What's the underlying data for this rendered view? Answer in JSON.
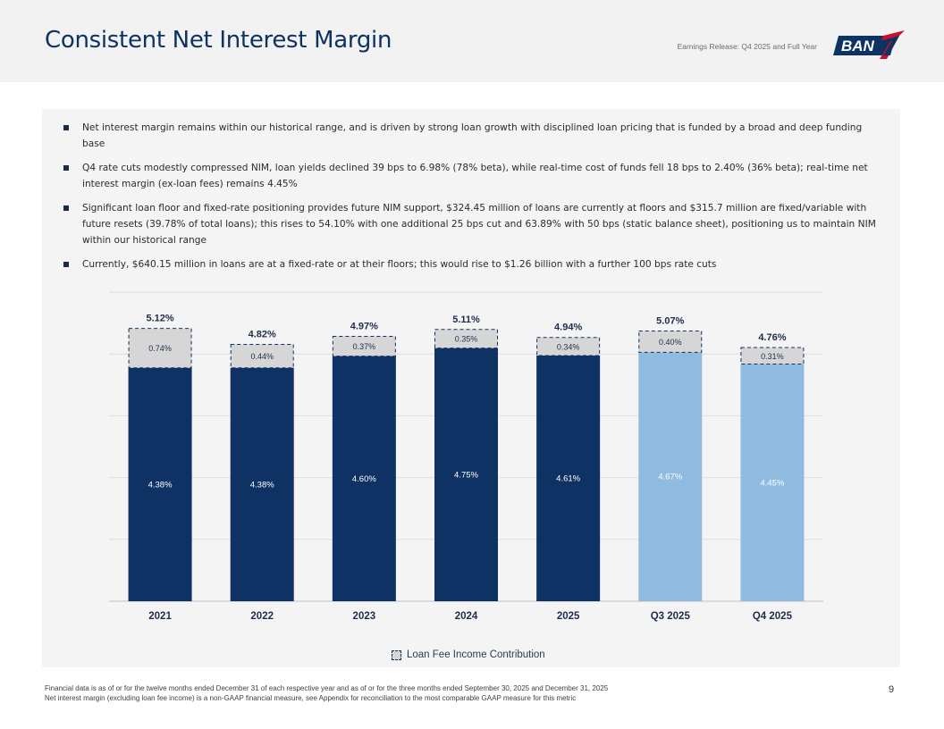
{
  "header": {
    "title": "Consistent Net Interest Margin",
    "subtitle": "Earnings Release: Q4 2025 and Full Year",
    "logo_text": "BANK7"
  },
  "bullets": [
    "Net interest margin remains within our historical range, and is driven by strong loan growth with disciplined loan pricing that is funded by a broad and deep funding base",
    "Q4 rate cuts modestly compressed NIM, loan yields declined 39 bps to 6.98% (78% beta), while real-time cost of funds fell 18 bps to 2.40% (36% beta); real-time net interest margin (ex-loan fees) remains 4.45%",
    "Significant loan floor and fixed-rate positioning provides future NIM support, $324.45 million of loans are currently at floors and $315.7 million are fixed/variable with future resets (39.78% of total loans); this rises to 54.10% with one additional 25 bps cut and 63.89% with 50 bps (static balance sheet), positioning us to maintain NIM within our historical range",
    "Currently, $640.15 million in loans are at a fixed-rate or at their floors; this would rise to $1.26 billion with a further 100 bps rate cuts"
  ],
  "chart_data": {
    "type": "bar",
    "stacked": true,
    "categories": [
      "2021",
      "2022",
      "2023",
      "2024",
      "2025",
      "Q3 2025",
      "Q4 2025"
    ],
    "series": [
      {
        "values": [
          4.38,
          4.38,
          4.6,
          4.75,
          4.61,
          4.67,
          4.45
        ],
        "labels": [
          "4.38%",
          "4.38%",
          "4.60%",
          "4.75%",
          "4.61%",
          "4.67%",
          "4.45%"
        ]
      },
      {
        "name": "Loan Fee Income Contribution",
        "values": [
          0.74,
          0.44,
          0.37,
          0.35,
          0.34,
          0.4,
          0.31
        ],
        "labels": [
          "0.74%",
          "0.44%",
          "0.37%",
          "0.35%",
          "0.34%",
          "0.40%",
          "0.31%"
        ]
      }
    ],
    "totals": [
      5.12,
      4.82,
      4.97,
      5.11,
      4.94,
      5.07,
      4.76
    ],
    "total_labels": [
      "5.12%",
      "4.82%",
      "4.97%",
      "5.11%",
      "4.94%",
      "5.07%",
      "4.76%"
    ],
    "ylim": [
      0,
      5.8
    ],
    "grid": true,
    "legend": "bottom-center",
    "colors": {
      "annual": "#0d3263",
      "quarterly": "#8fbbe1",
      "fee": "#d6d6d6",
      "grid": "#dddddd"
    }
  },
  "legend": {
    "label": "Loan Fee Income Contribution"
  },
  "footnotes": [
    "Financial data is as of or for the twelve months ended December 31 of each respective year and as of or for the three months ended September 30, 2025 and December 31, 2025",
    "Net interest margin (excluding loan fee income) is a non-GAAP financial measure, see Appendix for reconciliation to the most comparable GAAP measure for this metric"
  ],
  "page_number": "9"
}
